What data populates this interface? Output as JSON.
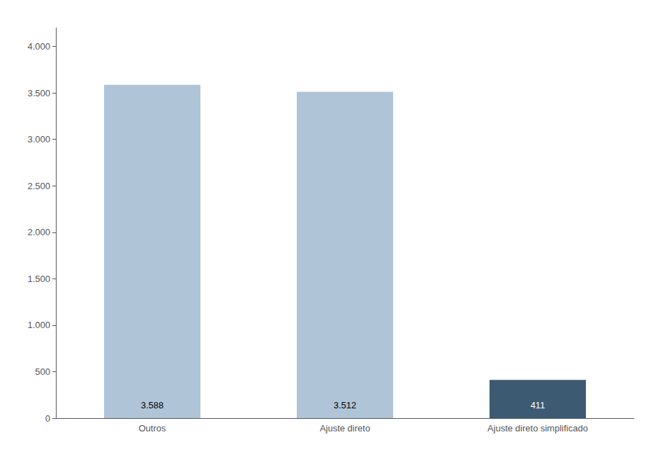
{
  "chart_data": {
    "type": "bar",
    "categories": [
      "Outros",
      "Ajuste direto",
      "Ajuste direto simplificado"
    ],
    "values": [
      3588,
      3512,
      411
    ],
    "value_labels": [
      "3.588",
      "3.512",
      "411"
    ],
    "colors": [
      "#b0c4d8",
      "#b0c4d8",
      "#3d5a73"
    ],
    "ylim": [
      0,
      4200
    ],
    "yticks": [
      0,
      500,
      {
        "value": 1000,
        "label": "1.000"
      },
      {
        "value": 1500,
        "label": "1.500"
      },
      {
        "value": 2000,
        "label": "2.000"
      },
      {
        "value": 2500,
        "label": "2.500"
      },
      {
        "value": 3000,
        "label": "3.000"
      },
      {
        "value": 3500,
        "label": "3.500"
      },
      {
        "value": 4000,
        "label": "4.000"
      }
    ],
    "data_labels": true,
    "grid": false
  }
}
